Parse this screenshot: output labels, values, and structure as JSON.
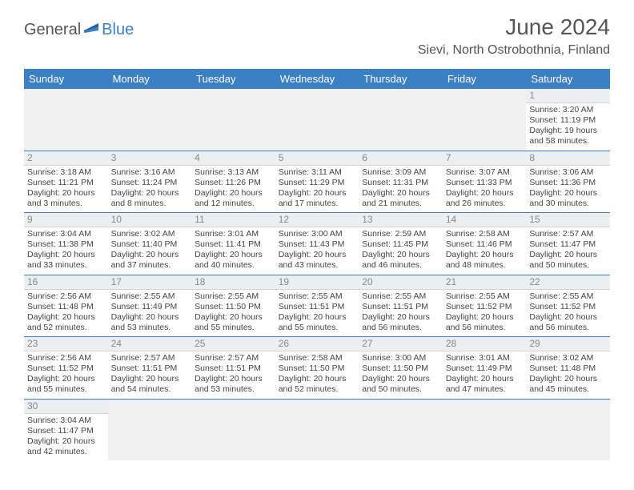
{
  "logo": {
    "text1": "General",
    "text2": "Blue"
  },
  "title": "June 2024",
  "location": "Sievi, North Ostrobothnia, Finland",
  "colors": {
    "headerBg": "#3b7fc4",
    "headerText": "#ffffff",
    "dayNumBg": "#eceef0",
    "border": "#3b7fc4",
    "text": "#444444"
  },
  "dayHeaders": [
    "Sunday",
    "Monday",
    "Tuesday",
    "Wednesday",
    "Thursday",
    "Friday",
    "Saturday"
  ],
  "weeks": [
    [
      {
        "num": "",
        "lines": [
          "",
          "",
          ""
        ]
      },
      {
        "num": "",
        "lines": [
          "",
          "",
          ""
        ]
      },
      {
        "num": "",
        "lines": [
          "",
          "",
          ""
        ]
      },
      {
        "num": "",
        "lines": [
          "",
          "",
          ""
        ]
      },
      {
        "num": "",
        "lines": [
          "",
          "",
          ""
        ]
      },
      {
        "num": "",
        "lines": [
          "",
          "",
          ""
        ]
      },
      {
        "num": "1",
        "lines": [
          "Sunrise: 3:20 AM",
          "Sunset: 11:19 PM",
          "Daylight: 19 hours and 58 minutes."
        ]
      }
    ],
    [
      {
        "num": "2",
        "lines": [
          "Sunrise: 3:18 AM",
          "Sunset: 11:21 PM",
          "Daylight: 20 hours and 3 minutes."
        ]
      },
      {
        "num": "3",
        "lines": [
          "Sunrise: 3:16 AM",
          "Sunset: 11:24 PM",
          "Daylight: 20 hours and 8 minutes."
        ]
      },
      {
        "num": "4",
        "lines": [
          "Sunrise: 3:13 AM",
          "Sunset: 11:26 PM",
          "Daylight: 20 hours and 12 minutes."
        ]
      },
      {
        "num": "5",
        "lines": [
          "Sunrise: 3:11 AM",
          "Sunset: 11:29 PM",
          "Daylight: 20 hours and 17 minutes."
        ]
      },
      {
        "num": "6",
        "lines": [
          "Sunrise: 3:09 AM",
          "Sunset: 11:31 PM",
          "Daylight: 20 hours and 21 minutes."
        ]
      },
      {
        "num": "7",
        "lines": [
          "Sunrise: 3:07 AM",
          "Sunset: 11:33 PM",
          "Daylight: 20 hours and 26 minutes."
        ]
      },
      {
        "num": "8",
        "lines": [
          "Sunrise: 3:06 AM",
          "Sunset: 11:36 PM",
          "Daylight: 20 hours and 30 minutes."
        ]
      }
    ],
    [
      {
        "num": "9",
        "lines": [
          "Sunrise: 3:04 AM",
          "Sunset: 11:38 PM",
          "Daylight: 20 hours and 33 minutes."
        ]
      },
      {
        "num": "10",
        "lines": [
          "Sunrise: 3:02 AM",
          "Sunset: 11:40 PM",
          "Daylight: 20 hours and 37 minutes."
        ]
      },
      {
        "num": "11",
        "lines": [
          "Sunrise: 3:01 AM",
          "Sunset: 11:41 PM",
          "Daylight: 20 hours and 40 minutes."
        ]
      },
      {
        "num": "12",
        "lines": [
          "Sunrise: 3:00 AM",
          "Sunset: 11:43 PM",
          "Daylight: 20 hours and 43 minutes."
        ]
      },
      {
        "num": "13",
        "lines": [
          "Sunrise: 2:59 AM",
          "Sunset: 11:45 PM",
          "Daylight: 20 hours and 46 minutes."
        ]
      },
      {
        "num": "14",
        "lines": [
          "Sunrise: 2:58 AM",
          "Sunset: 11:46 PM",
          "Daylight: 20 hours and 48 minutes."
        ]
      },
      {
        "num": "15",
        "lines": [
          "Sunrise: 2:57 AM",
          "Sunset: 11:47 PM",
          "Daylight: 20 hours and 50 minutes."
        ]
      }
    ],
    [
      {
        "num": "16",
        "lines": [
          "Sunrise: 2:56 AM",
          "Sunset: 11:48 PM",
          "Daylight: 20 hours and 52 minutes."
        ]
      },
      {
        "num": "17",
        "lines": [
          "Sunrise: 2:55 AM",
          "Sunset: 11:49 PM",
          "Daylight: 20 hours and 53 minutes."
        ]
      },
      {
        "num": "18",
        "lines": [
          "Sunrise: 2:55 AM",
          "Sunset: 11:50 PM",
          "Daylight: 20 hours and 55 minutes."
        ]
      },
      {
        "num": "19",
        "lines": [
          "Sunrise: 2:55 AM",
          "Sunset: 11:51 PM",
          "Daylight: 20 hours and 55 minutes."
        ]
      },
      {
        "num": "20",
        "lines": [
          "Sunrise: 2:55 AM",
          "Sunset: 11:51 PM",
          "Daylight: 20 hours and 56 minutes."
        ]
      },
      {
        "num": "21",
        "lines": [
          "Sunrise: 2:55 AM",
          "Sunset: 11:52 PM",
          "Daylight: 20 hours and 56 minutes."
        ]
      },
      {
        "num": "22",
        "lines": [
          "Sunrise: 2:55 AM",
          "Sunset: 11:52 PM",
          "Daylight: 20 hours and 56 minutes."
        ]
      }
    ],
    [
      {
        "num": "23",
        "lines": [
          "Sunrise: 2:56 AM",
          "Sunset: 11:52 PM",
          "Daylight: 20 hours and 55 minutes."
        ]
      },
      {
        "num": "24",
        "lines": [
          "Sunrise: 2:57 AM",
          "Sunset: 11:51 PM",
          "Daylight: 20 hours and 54 minutes."
        ]
      },
      {
        "num": "25",
        "lines": [
          "Sunrise: 2:57 AM",
          "Sunset: 11:51 PM",
          "Daylight: 20 hours and 53 minutes."
        ]
      },
      {
        "num": "26",
        "lines": [
          "Sunrise: 2:58 AM",
          "Sunset: 11:50 PM",
          "Daylight: 20 hours and 52 minutes."
        ]
      },
      {
        "num": "27",
        "lines": [
          "Sunrise: 3:00 AM",
          "Sunset: 11:50 PM",
          "Daylight: 20 hours and 50 minutes."
        ]
      },
      {
        "num": "28",
        "lines": [
          "Sunrise: 3:01 AM",
          "Sunset: 11:49 PM",
          "Daylight: 20 hours and 47 minutes."
        ]
      },
      {
        "num": "29",
        "lines": [
          "Sunrise: 3:02 AM",
          "Sunset: 11:48 PM",
          "Daylight: 20 hours and 45 minutes."
        ]
      }
    ],
    [
      {
        "num": "30",
        "lines": [
          "Sunrise: 3:04 AM",
          "Sunset: 11:47 PM",
          "Daylight: 20 hours and 42 minutes."
        ]
      },
      {
        "num": "",
        "lines": [
          "",
          "",
          ""
        ]
      },
      {
        "num": "",
        "lines": [
          "",
          "",
          ""
        ]
      },
      {
        "num": "",
        "lines": [
          "",
          "",
          ""
        ]
      },
      {
        "num": "",
        "lines": [
          "",
          "",
          ""
        ]
      },
      {
        "num": "",
        "lines": [
          "",
          "",
          ""
        ]
      },
      {
        "num": "",
        "lines": [
          "",
          "",
          ""
        ]
      }
    ]
  ]
}
